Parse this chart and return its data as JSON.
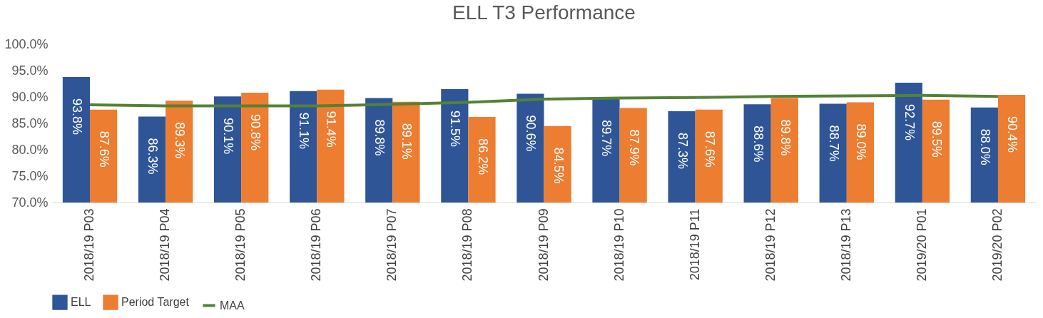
{
  "chart_data": {
    "type": "bar",
    "title": "ELL T3 Performance",
    "categories": [
      "2018/19 P03",
      "2018/19 P04",
      "2018/19 P05",
      "2018/19 P06",
      "2018/19 P07",
      "2018/19 P08",
      "2018/19 P09",
      "2018/19 P10",
      "2018/19 P11",
      "2018/19 P12",
      "2018/19 P13",
      "2019/20 P01",
      "2019/20 P02"
    ],
    "series": [
      {
        "name": "ELL",
        "color": "#2f5597",
        "values": [
          93.8,
          86.3,
          90.1,
          91.1,
          89.8,
          91.5,
          90.6,
          89.7,
          87.3,
          88.6,
          88.7,
          92.7,
          88.0
        ],
        "value_labels": [
          "93.8%",
          "86.3%",
          "90.1%",
          "91.1%",
          "89.8%",
          "91.5%",
          "90.6%",
          "89.7%",
          "87.3%",
          "88.6%",
          "88.7%",
          "92.7%",
          "88.0%"
        ]
      },
      {
        "name": "Period Target",
        "color": "#ed7d31",
        "values": [
          87.6,
          89.3,
          90.8,
          91.4,
          89.1,
          86.2,
          84.5,
          87.9,
          87.6,
          89.8,
          89.0,
          89.5,
          90.4
        ],
        "value_labels": [
          "87.6%",
          "89.3%",
          "90.8%",
          "91.4%",
          "89.1%",
          "86.2%",
          "84.5%",
          "87.9%",
          "87.6%",
          "89.8%",
          "89.0%",
          "89.5%",
          "90.4%"
        ]
      },
      {
        "name": "MAA",
        "type": "line",
        "color": "#548235",
        "values": [
          88.5,
          88.3,
          88.3,
          88.3,
          88.6,
          89.0,
          89.6,
          89.8,
          89.9,
          90.1,
          90.2,
          90.3,
          90.1
        ]
      }
    ],
    "ylim": [
      70,
      100
    ],
    "yticks": [
      {
        "value": 70,
        "label": "70.0%"
      },
      {
        "value": 75,
        "label": "75.0%"
      },
      {
        "value": 80,
        "label": "80.0%"
      },
      {
        "value": 85,
        "label": "85.0%"
      },
      {
        "value": 90,
        "label": "90.0%"
      },
      {
        "value": 95,
        "label": "95.0%"
      },
      {
        "value": 100,
        "label": "100.0%"
      }
    ],
    "legend": "bottom",
    "grid": false
  }
}
